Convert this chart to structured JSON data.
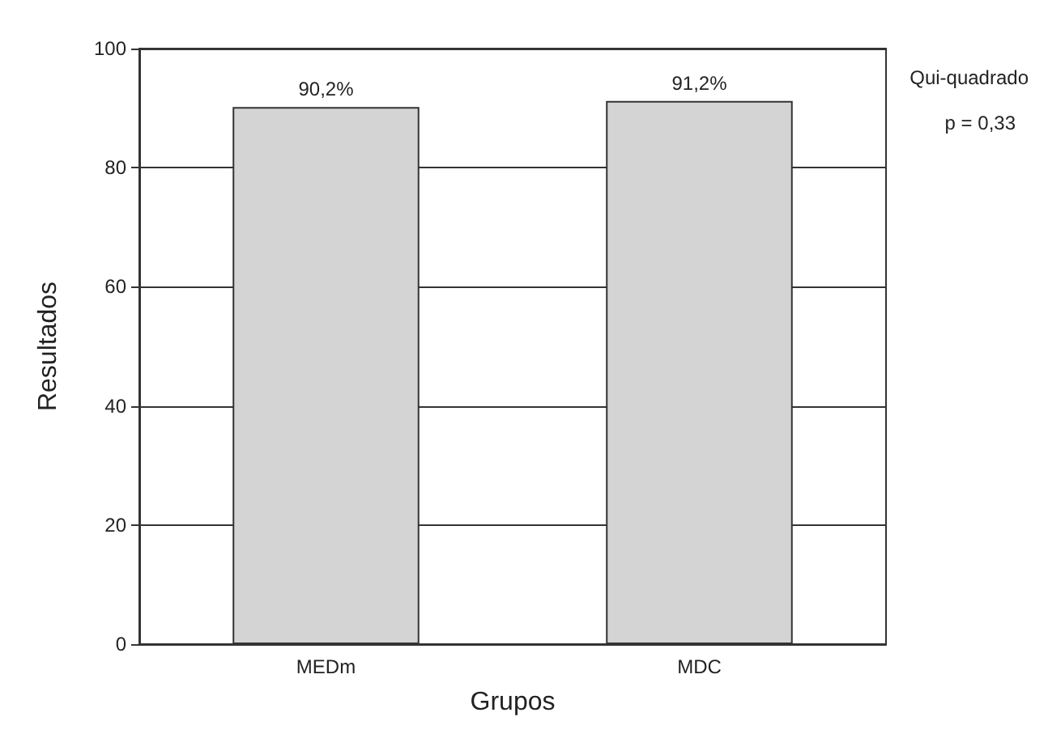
{
  "chart_data": {
    "type": "bar",
    "xlabel": "Grupos",
    "ylabel": "Resultados",
    "categories": [
      "MEDm",
      "MDC"
    ],
    "values": [
      90.2,
      91.2
    ],
    "value_labels": [
      "90,2%",
      "91,2%"
    ],
    "color": "#d4d4d4",
    "ylim": [
      0,
      100
    ],
    "yticks": [
      0,
      20,
      40,
      60,
      80,
      100
    ],
    "grid": "y",
    "annotations": [
      "Qui-quadrado",
      "p = 0,33"
    ]
  }
}
